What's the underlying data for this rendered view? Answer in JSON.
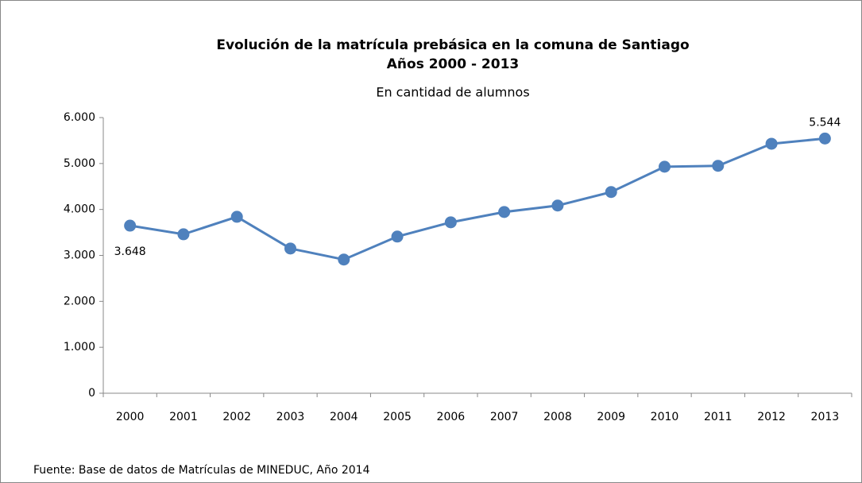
{
  "chart_data": {
    "type": "line",
    "title": [
      "Evolución de la matrícula prebásica en la comuna de Santiago",
      "Años 2000 - 2013"
    ],
    "subtitle": "En cantidad de alumnos",
    "source": "Fuente: Base de datos de Matrículas de MINEDUC, Año 2014",
    "categories": [
      "2000",
      "2001",
      "2002",
      "2003",
      "2004",
      "2005",
      "2006",
      "2007",
      "2008",
      "2009",
      "2010",
      "2011",
      "2012",
      "2013"
    ],
    "values": [
      3648,
      3460,
      3840,
      3150,
      2910,
      3410,
      3720,
      3945,
      4085,
      4380,
      4930,
      4950,
      5430,
      5544
    ],
    "value_labels": [
      "3.648",
      null,
      null,
      null,
      null,
      null,
      null,
      null,
      null,
      null,
      null,
      null,
      null,
      "5.544"
    ],
    "color": "#4f81bd",
    "ylim": [
      0,
      6000
    ],
    "yticks": [
      0,
      {
        "value": 1000,
        "label": "1.000"
      },
      {
        "value": 2000,
        "label": "2.000"
      },
      {
        "value": 3000,
        "label": "3.000"
      },
      {
        "value": 4000,
        "label": "4.000"
      },
      {
        "value": 5000,
        "label": "5.000"
      },
      {
        "value": 6000,
        "label": "6.000"
      }
    ]
  }
}
